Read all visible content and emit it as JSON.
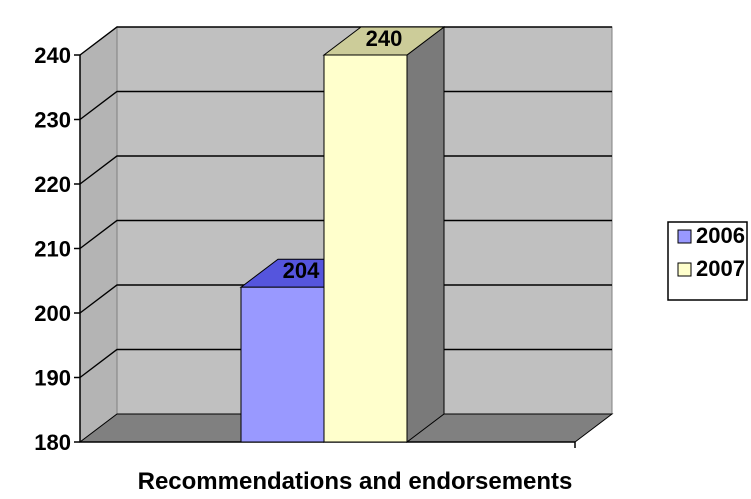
{
  "chart_data": {
    "type": "bar",
    "style": "3d-clustered-column",
    "categories": [
      "Recommendations and endorsements"
    ],
    "series": [
      {
        "name": "2006",
        "values": [
          204
        ],
        "color": "#9999ff"
      },
      {
        "name": "2007",
        "values": [
          240
        ],
        "color": "#ffffcc"
      }
    ],
    "ylim": [
      180,
      240
    ],
    "yticks": [
      180,
      190,
      200,
      210,
      220,
      230,
      240
    ],
    "data_labels": [
      "204",
      "240"
    ],
    "grid": true,
    "legend_position": "right",
    "wall_color": "#c0c0c0",
    "floor_color": "#808080"
  }
}
